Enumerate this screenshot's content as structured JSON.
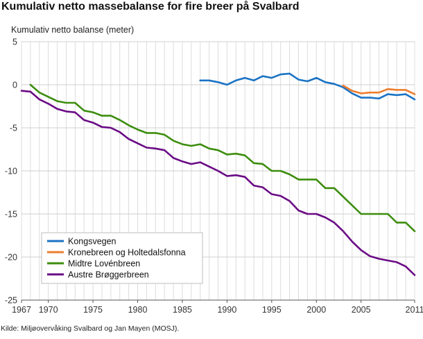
{
  "title": "Kumulativ netto massebalanse for fire breer på Svalbard",
  "source": "Kilde: Miljøovervåking Svalbard og Jan Mayen (MOSJ).",
  "chart_data": {
    "type": "line",
    "title": "Kumulativ netto massebalanse for fire breer på Svalbard",
    "ylabel": "Kumulativ netto balanse (meter)",
    "xlabel": "",
    "xlim": [
      1967,
      2011
    ],
    "ylim": [
      -25,
      5
    ],
    "x_ticks": [
      {
        "value": 1967,
        "label": "1967"
      },
      {
        "value": 1970,
        "label": "1970"
      },
      {
        "value": 1975,
        "label": "1975"
      },
      {
        "value": 1980,
        "label": "1980"
      },
      {
        "value": 1985,
        "label": "1985"
      },
      {
        "value": 1990,
        "label": "1990"
      },
      {
        "value": 1995,
        "label": "1995"
      },
      {
        "value": 2000,
        "label": "2000"
      },
      {
        "value": 2005,
        "label": "2005"
      },
      {
        "value": 2011,
        "label": "2011"
      }
    ],
    "y_ticks": [
      {
        "value": 5,
        "label": "5"
      },
      {
        "value": 0,
        "label": "0"
      },
      {
        "value": -5,
        "label": "-5"
      },
      {
        "value": -10,
        "label": "-10"
      },
      {
        "value": -15,
        "label": "-15"
      },
      {
        "value": -20,
        "label": "-20"
      },
      {
        "value": -25,
        "label": "-25"
      }
    ],
    "grid": true,
    "legend_position": "bottom-left",
    "series": [
      {
        "name": "Kongsvegen",
        "color": "#1a73c4",
        "x": [
          1987,
          1988,
          1989,
          1990,
          1991,
          1992,
          1993,
          1994,
          1995,
          1996,
          1997,
          1998,
          1999,
          2000,
          2001,
          2002,
          2003,
          2004,
          2005,
          2006,
          2007,
          2008,
          2009,
          2010,
          2011
        ],
        "values": [
          0.5,
          0.5,
          0.3,
          0.0,
          0.5,
          0.8,
          0.5,
          1.0,
          0.8,
          1.2,
          1.3,
          0.6,
          0.4,
          0.8,
          0.3,
          0.1,
          -0.3,
          -1.0,
          -1.5,
          -1.5,
          -1.6,
          -1.1,
          -1.2,
          -1.1,
          -1.7
        ]
      },
      {
        "name": "Kronebreen og Holtedalsfonna",
        "color": "#ee7d2d",
        "x": [
          2003,
          2004,
          2005,
          2006,
          2007,
          2008,
          2009,
          2010,
          2011
        ],
        "values": [
          -0.1,
          -0.7,
          -1.0,
          -0.9,
          -0.9,
          -0.5,
          -0.6,
          -0.6,
          -1.1
        ]
      },
      {
        "name": "Midtre Lovénbreen",
        "color": "#3c8d0d",
        "x": [
          1968,
          1969,
          1970,
          1971,
          1972,
          1973,
          1974,
          1975,
          1976,
          1977,
          1978,
          1979,
          1980,
          1981,
          1982,
          1983,
          1984,
          1985,
          1986,
          1987,
          1988,
          1989,
          1990,
          1991,
          1992,
          1993,
          1994,
          1995,
          1996,
          1997,
          1998,
          1999,
          2000,
          2001,
          2002,
          2003,
          2004,
          2005,
          2006,
          2007,
          2008,
          2009,
          2010,
          2011
        ],
        "values": [
          0.0,
          -0.9,
          -1.4,
          -1.9,
          -2.1,
          -2.1,
          -3.0,
          -3.2,
          -3.6,
          -3.6,
          -4.1,
          -4.7,
          -5.2,
          -5.6,
          -5.6,
          -5.8,
          -6.5,
          -6.9,
          -7.1,
          -6.9,
          -7.4,
          -7.6,
          -8.1,
          -8.0,
          -8.2,
          -9.1,
          -9.2,
          -10.0,
          -10.0,
          -10.4,
          -11.0,
          -11.0,
          -11.0,
          -12.0,
          -12.0,
          -13.0,
          -14.0,
          -15.0,
          -15.0,
          -15.0,
          -15.0,
          -16.0,
          -16.0,
          -17.0
        ]
      },
      {
        "name": "Austre Brøggerbreen",
        "color": "#6a0a85",
        "x": [
          1967,
          1968,
          1969,
          1970,
          1971,
          1972,
          1973,
          1974,
          1975,
          1976,
          1977,
          1978,
          1979,
          1980,
          1981,
          1982,
          1983,
          1984,
          1985,
          1986,
          1987,
          1988,
          1989,
          1990,
          1991,
          1992,
          1993,
          1994,
          1995,
          1996,
          1997,
          1998,
          1999,
          2000,
          2001,
          2002,
          2003,
          2004,
          2005,
          2006,
          2007,
          2008,
          2009,
          2010,
          2011
        ],
        "values": [
          -0.7,
          -0.8,
          -1.7,
          -2.2,
          -2.8,
          -3.1,
          -3.2,
          -4.1,
          -4.4,
          -4.9,
          -5.0,
          -5.5,
          -6.3,
          -6.8,
          -7.3,
          -7.4,
          -7.6,
          -8.5,
          -8.9,
          -9.2,
          -9.0,
          -9.5,
          -10.0,
          -10.6,
          -10.5,
          -10.7,
          -11.7,
          -11.9,
          -12.7,
          -12.9,
          -13.5,
          -14.6,
          -15.0,
          -15.0,
          -15.4,
          -16.0,
          -17.0,
          -18.2,
          -19.2,
          -19.9,
          -20.2,
          -20.4,
          -20.6,
          -21.1,
          -22.1
        ]
      }
    ]
  }
}
